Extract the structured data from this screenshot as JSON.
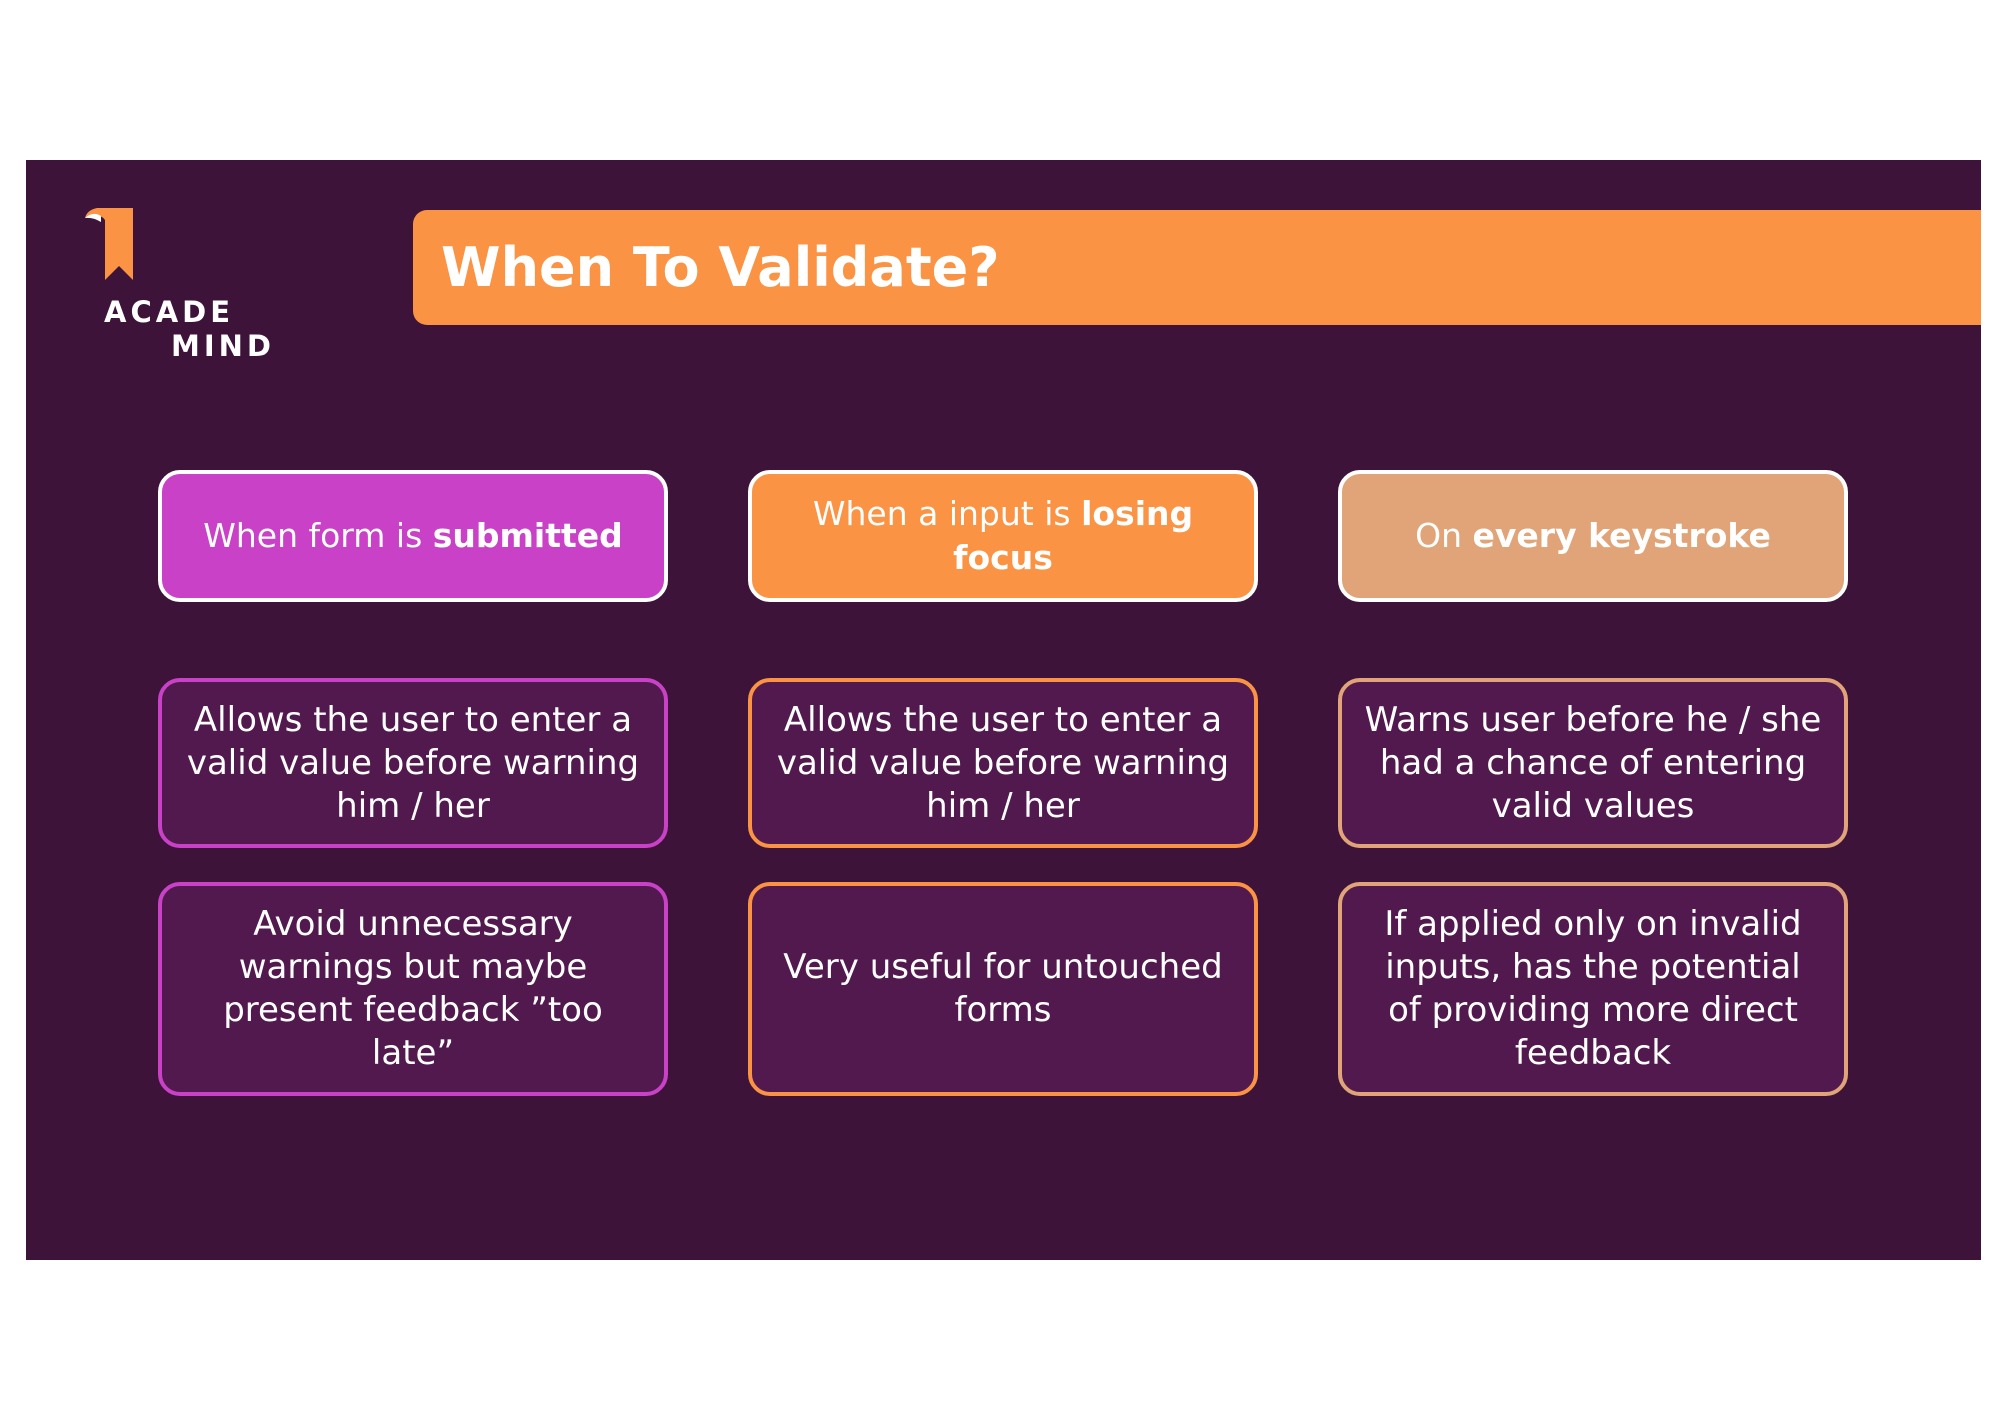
{
  "brand": {
    "logo_line1": "ACADE",
    "logo_line2": "MIND",
    "colors": {
      "background": "#3e1339",
      "accent_orange": "#fa9343",
      "accent_magenta": "#c941c7",
      "accent_tan": "#e0a478",
      "box_fill": "#51194e"
    }
  },
  "slide": {
    "title": "When To Validate?"
  },
  "columns": [
    {
      "heading_pre": "When form is ",
      "heading_bold": "submitted",
      "heading_post": "",
      "pro": "Allows the user to enter a valid value before warning him / her",
      "note": "Avoid unnecessary warnings but maybe present feedback ”too late”"
    },
    {
      "heading_pre": "When a input is ",
      "heading_bold": "losing focus",
      "heading_post": "",
      "pro": "Allows the user to enter a valid value before warning him / her",
      "note": "Very useful for untouched forms"
    },
    {
      "heading_pre": "On ",
      "heading_bold": "every keystroke",
      "heading_post": "",
      "pro": "Warns user before he / she had a chance of entering valid values",
      "note": "If applied only on invalid inputs, has the potential of providing more direct feedback"
    }
  ]
}
